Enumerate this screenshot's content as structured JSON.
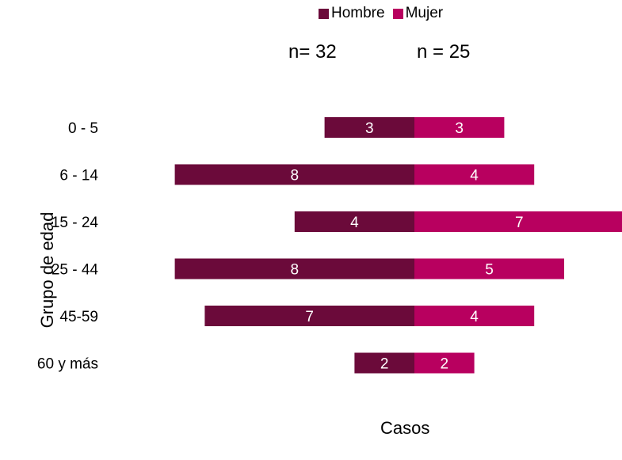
{
  "chart_data": {
    "type": "bar",
    "orientation": "horizontal",
    "layout": "population-pyramid",
    "categories": [
      "0 - 5",
      "6 - 14",
      "15 - 24",
      "25 - 44",
      "45-59",
      "60 y más"
    ],
    "series": [
      {
        "name": "Hombre",
        "values": [
          3,
          8,
          4,
          8,
          7,
          2
        ],
        "color": "#6b0a3a"
      },
      {
        "name": "Mujer",
        "values": [
          3,
          4,
          7,
          5,
          4,
          2
        ],
        "color": "#b8005f"
      }
    ],
    "n_labels": {
      "hombre": "n= 32",
      "mujer": "n = 25"
    },
    "xlabel": "Casos",
    "ylabel": "Grupo de edad",
    "legend_position": "top",
    "grid": false,
    "data_labels": true,
    "data_label_color": "#ffffff"
  }
}
